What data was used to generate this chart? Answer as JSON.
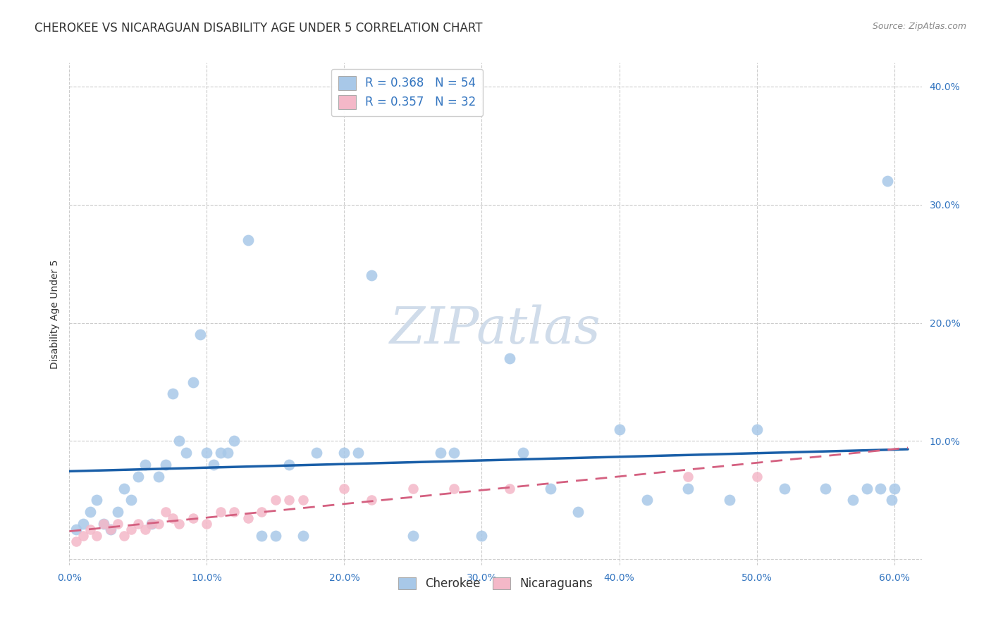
{
  "title": "CHEROKEE VS NICARAGUAN DISABILITY AGE UNDER 5 CORRELATION CHART",
  "source": "Source: ZipAtlas.com",
  "ylabel": "Disability Age Under 5",
  "xlim": [
    0.0,
    0.62
  ],
  "ylim": [
    -0.005,
    0.42
  ],
  "xticks": [
    0.0,
    0.1,
    0.2,
    0.3,
    0.4,
    0.5,
    0.6
  ],
  "yticks": [
    0.0,
    0.1,
    0.2,
    0.3,
    0.4
  ],
  "xtick_labels": [
    "0.0%",
    "10.0%",
    "20.0%",
    "30.0%",
    "40.0%",
    "50.0%",
    "60.0%"
  ],
  "ytick_labels": [
    "",
    "10.0%",
    "20.0%",
    "30.0%",
    "40.0%"
  ],
  "cherokee_R": 0.368,
  "cherokee_N": 54,
  "nicaraguan_R": 0.357,
  "nicaraguan_N": 32,
  "cherokee_color": "#a8c8e8",
  "cherokee_edge_color": "#7aaed4",
  "cherokee_line_color": "#1a5fa8",
  "nicaraguan_color": "#f4b8c8",
  "nicaraguan_edge_color": "#e090a8",
  "nicaraguan_line_color": "#d46080",
  "background_color": "#ffffff",
  "grid_color": "#cccccc",
  "cherokee_x": [
    0.005,
    0.01,
    0.015,
    0.02,
    0.025,
    0.03,
    0.035,
    0.04,
    0.045,
    0.05,
    0.055,
    0.06,
    0.065,
    0.07,
    0.075,
    0.08,
    0.085,
    0.09,
    0.095,
    0.1,
    0.105,
    0.11,
    0.115,
    0.12,
    0.13,
    0.14,
    0.15,
    0.16,
    0.17,
    0.18,
    0.2,
    0.21,
    0.22,
    0.25,
    0.27,
    0.28,
    0.3,
    0.32,
    0.33,
    0.35,
    0.37,
    0.4,
    0.42,
    0.45,
    0.48,
    0.5,
    0.52,
    0.55,
    0.57,
    0.58,
    0.59,
    0.595,
    0.598,
    0.6
  ],
  "cherokee_y": [
    0.025,
    0.03,
    0.04,
    0.05,
    0.03,
    0.025,
    0.04,
    0.06,
    0.05,
    0.07,
    0.08,
    0.03,
    0.07,
    0.08,
    0.14,
    0.1,
    0.09,
    0.15,
    0.19,
    0.09,
    0.08,
    0.09,
    0.09,
    0.1,
    0.27,
    0.02,
    0.02,
    0.08,
    0.02,
    0.09,
    0.09,
    0.09,
    0.24,
    0.02,
    0.09,
    0.09,
    0.02,
    0.17,
    0.09,
    0.06,
    0.04,
    0.11,
    0.05,
    0.06,
    0.05,
    0.11,
    0.06,
    0.06,
    0.05,
    0.06,
    0.06,
    0.32,
    0.05,
    0.06
  ],
  "nicaraguan_x": [
    0.005,
    0.01,
    0.015,
    0.02,
    0.025,
    0.03,
    0.035,
    0.04,
    0.045,
    0.05,
    0.055,
    0.06,
    0.065,
    0.07,
    0.075,
    0.08,
    0.09,
    0.1,
    0.11,
    0.12,
    0.13,
    0.14,
    0.15,
    0.16,
    0.17,
    0.2,
    0.22,
    0.25,
    0.28,
    0.32,
    0.45,
    0.5
  ],
  "nicaraguan_y": [
    0.015,
    0.02,
    0.025,
    0.02,
    0.03,
    0.025,
    0.03,
    0.02,
    0.025,
    0.03,
    0.025,
    0.03,
    0.03,
    0.04,
    0.035,
    0.03,
    0.035,
    0.03,
    0.04,
    0.04,
    0.035,
    0.04,
    0.05,
    0.05,
    0.05,
    0.06,
    0.05,
    0.06,
    0.06,
    0.06,
    0.07,
    0.07
  ],
  "title_fontsize": 12,
  "axis_label_fontsize": 10,
  "tick_fontsize": 10,
  "legend_fontsize": 12,
  "watermark_text": "ZIPatlas",
  "watermark_color": "#d0dcea",
  "cherokee_label": "Cherokee",
  "nicaraguan_label": "Nicaraguans"
}
